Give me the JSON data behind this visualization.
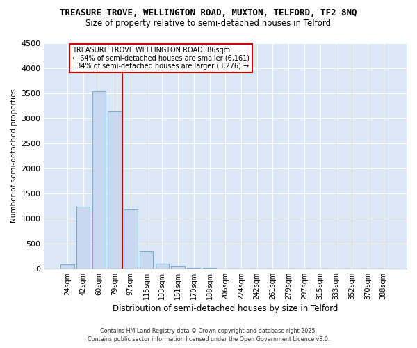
{
  "title_line1": "TREASURE TROVE, WELLINGTON ROAD, MUXTON, TELFORD, TF2 8NQ",
  "title_line2": "Size of property relative to semi-detached houses in Telford",
  "xlabel": "Distribution of semi-detached houses by size in Telford",
  "ylabel": "Number of semi-detached properties",
  "categories": [
    "24sqm",
    "42sqm",
    "60sqm",
    "79sqm",
    "97sqm",
    "115sqm",
    "133sqm",
    "151sqm",
    "170sqm",
    "188sqm",
    "206sqm",
    "224sqm",
    "242sqm",
    "261sqm",
    "279sqm",
    "297sqm",
    "315sqm",
    "333sqm",
    "352sqm",
    "370sqm",
    "388sqm"
  ],
  "values": [
    80,
    1230,
    3540,
    3130,
    1170,
    340,
    100,
    50,
    10,
    5,
    3,
    2,
    1,
    1,
    1,
    0,
    0,
    0,
    0,
    0,
    0
  ],
  "bar_color": "#c8d9ef",
  "bar_edge_color": "#7aadd4",
  "vline_x": 3.5,
  "vline_color": "#cc0000",
  "property_label": "TREASURE TROVE WELLINGTON ROAD: 86sqm",
  "pct_smaller": 64,
  "count_smaller": "6,161",
  "pct_larger": 34,
  "count_larger": "3,276",
  "ann_box_color": "#cc0000",
  "ylim": [
    0,
    4500
  ],
  "yticks": [
    0,
    500,
    1000,
    1500,
    2000,
    2500,
    3000,
    3500,
    4000,
    4500
  ],
  "plot_bg_color": "#dce8f5",
  "fig_bg_color": "#ffffff",
  "grid_color": "#ffffff",
  "footer_line1": "Contains HM Land Registry data © Crown copyright and database right 2025.",
  "footer_line2": "Contains public sector information licensed under the Open Government Licence v3.0."
}
